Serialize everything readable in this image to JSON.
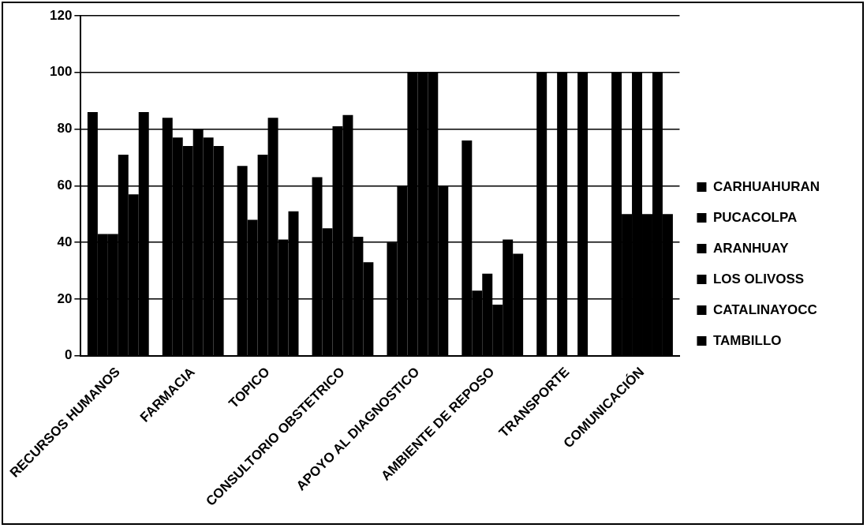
{
  "chart_data": {
    "type": "bar",
    "categories": [
      "RECURSOS HUMANOS",
      "FARMACIA",
      "TOPICO",
      "CONSULTORIO OBSTETRICO",
      "APOYO AL DIAGNOSTICO",
      "AMBIENTE DE REPOSO",
      "TRANSPORTE",
      "COMUNICACIÓN"
    ],
    "series": [
      {
        "name": "CARHUAHURAN",
        "color": "#000000",
        "values": [
          86,
          84,
          67,
          63,
          40,
          76,
          100,
          100
        ]
      },
      {
        "name": "PUCACOLPA",
        "color": "#000000",
        "values": [
          43,
          77,
          48,
          45,
          60,
          23,
          0,
          50
        ]
      },
      {
        "name": "ARANHUAY",
        "color": "#000000",
        "values": [
          43,
          74,
          71,
          81,
          100,
          29,
          100,
          100
        ]
      },
      {
        "name": "LOS OLIVOSS",
        "color": "#000000",
        "values": [
          71,
          80,
          84,
          85,
          100,
          18,
          0,
          50
        ]
      },
      {
        "name": "CATALINAYOCC",
        "color": "#000000",
        "values": [
          57,
          77,
          41,
          42,
          100,
          41,
          100,
          100
        ]
      },
      {
        "name": "TAMBILLO",
        "color": "#000000",
        "values": [
          86,
          74,
          51,
          33,
          60,
          36,
          0,
          50
        ]
      }
    ],
    "ylim": [
      0,
      120
    ],
    "yticks": [
      0,
      20,
      40,
      60,
      80,
      100,
      120
    ],
    "grid": "y",
    "legend": "right"
  }
}
